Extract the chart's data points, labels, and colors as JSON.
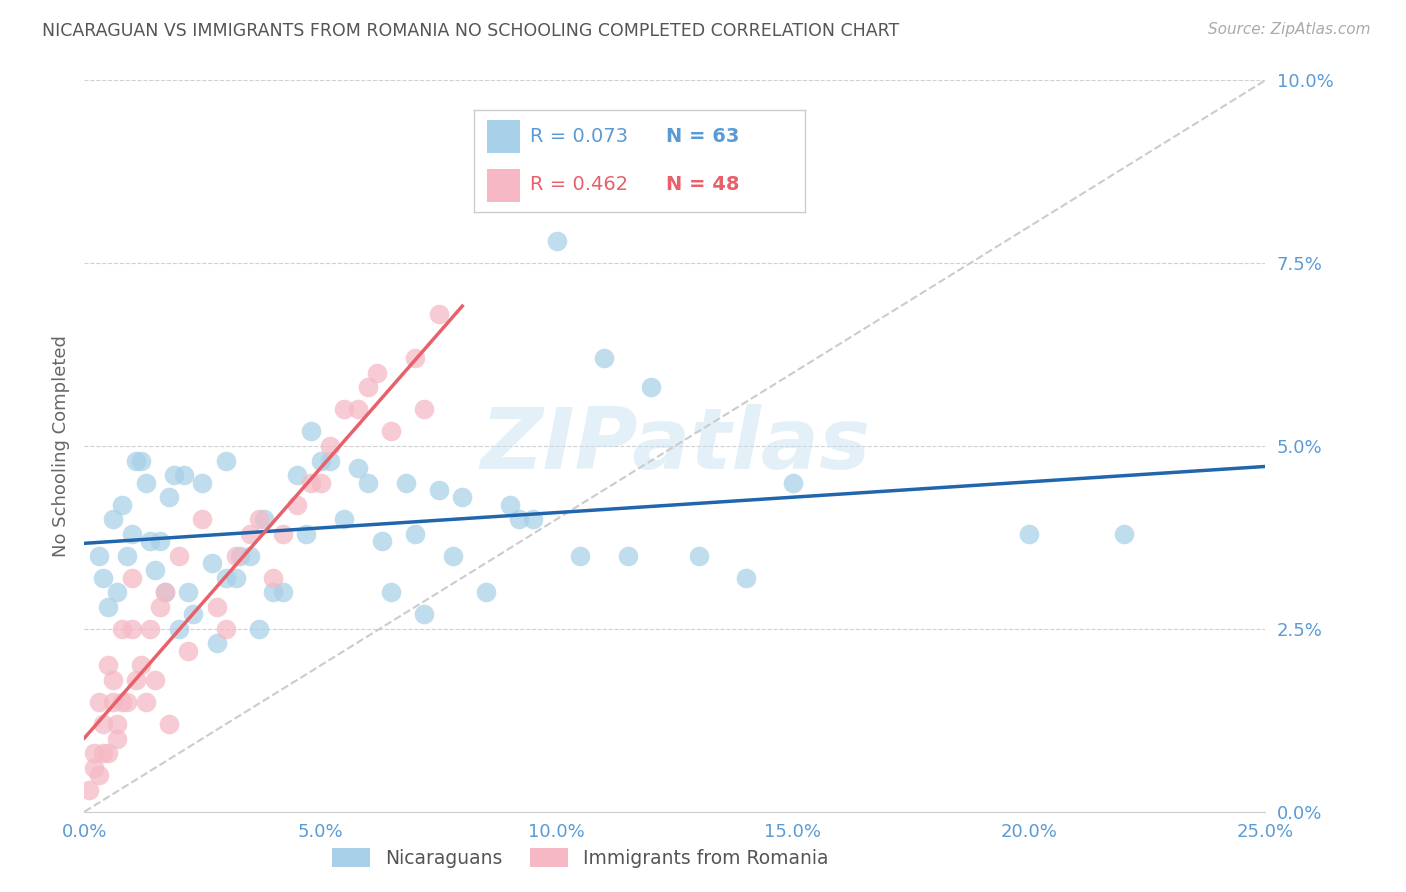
{
  "title": "NICARAGUAN VS IMMIGRANTS FROM ROMANIA NO SCHOOLING COMPLETED CORRELATION CHART",
  "source": "Source: ZipAtlas.com",
  "xtick_vals": [
    0.0,
    5.0,
    10.0,
    15.0,
    20.0,
    25.0
  ],
  "ytick_vals": [
    0.0,
    2.5,
    5.0,
    7.5,
    10.0
  ],
  "xlim": [
    0.0,
    25.0
  ],
  "ylim": [
    0.0,
    10.0
  ],
  "ylabel": "No Schooling Completed",
  "legend_label1": "Nicaraguans",
  "legend_label2": "Immigrants from Romania",
  "color1": "#a8d0e8",
  "color2": "#f5b8c4",
  "line_color1": "#2166ac",
  "line_color2": "#e8606a",
  "diagonal_color": "#cccccc",
  "tick_color": "#5b9bd5",
  "R1": 0.073,
  "N1": 63,
  "R2": 0.462,
  "N2": 48,
  "watermark": "ZIPatlas",
  "nicaraguan_x": [
    0.3,
    0.4,
    0.5,
    0.6,
    0.7,
    0.8,
    0.9,
    1.0,
    1.1,
    1.2,
    1.3,
    1.4,
    1.5,
    1.6,
    1.7,
    1.8,
    1.9,
    2.0,
    2.1,
    2.2,
    2.3,
    2.5,
    2.7,
    2.8,
    3.0,
    3.0,
    3.2,
    3.3,
    3.5,
    3.7,
    3.8,
    4.0,
    4.2,
    4.5,
    4.7,
    4.8,
    5.0,
    5.2,
    5.5,
    5.8,
    6.0,
    6.3,
    6.5,
    6.8,
    7.0,
    7.2,
    7.5,
    7.8,
    8.0,
    8.5,
    9.0,
    9.2,
    9.5,
    10.0,
    10.5,
    11.0,
    11.5,
    12.0,
    13.0,
    14.0,
    15.0,
    20.0,
    22.0
  ],
  "nicaraguan_y": [
    3.5,
    3.2,
    2.8,
    4.0,
    3.0,
    4.2,
    3.5,
    3.8,
    4.8,
    4.8,
    4.5,
    3.7,
    3.3,
    3.7,
    3.0,
    4.3,
    4.6,
    2.5,
    4.6,
    3.0,
    2.7,
    4.5,
    3.4,
    2.3,
    3.2,
    4.8,
    3.2,
    3.5,
    3.5,
    2.5,
    4.0,
    3.0,
    3.0,
    4.6,
    3.8,
    5.2,
    4.8,
    4.8,
    4.0,
    4.7,
    4.5,
    3.7,
    3.0,
    4.5,
    3.8,
    2.7,
    4.4,
    3.5,
    4.3,
    3.0,
    4.2,
    4.0,
    4.0,
    7.8,
    3.5,
    6.2,
    3.5,
    5.8,
    3.5,
    3.2,
    4.5,
    3.8,
    3.8
  ],
  "romania_x": [
    0.1,
    0.2,
    0.2,
    0.3,
    0.3,
    0.4,
    0.4,
    0.5,
    0.5,
    0.6,
    0.6,
    0.7,
    0.7,
    0.8,
    0.8,
    0.9,
    1.0,
    1.0,
    1.1,
    1.2,
    1.3,
    1.4,
    1.5,
    1.6,
    1.7,
    1.8,
    2.0,
    2.2,
    2.5,
    2.8,
    3.0,
    3.2,
    3.5,
    3.7,
    4.0,
    4.2,
    4.5,
    4.8,
    5.0,
    5.2,
    5.5,
    5.8,
    6.0,
    6.2,
    6.5,
    7.0,
    7.2,
    7.5
  ],
  "romania_y": [
    0.3,
    0.6,
    0.8,
    0.5,
    1.5,
    0.8,
    1.2,
    0.8,
    2.0,
    1.5,
    1.8,
    1.0,
    1.2,
    1.5,
    2.5,
    1.5,
    2.5,
    3.2,
    1.8,
    2.0,
    1.5,
    2.5,
    1.8,
    2.8,
    3.0,
    1.2,
    3.5,
    2.2,
    4.0,
    2.8,
    2.5,
    3.5,
    3.8,
    4.0,
    3.2,
    3.8,
    4.2,
    4.5,
    4.5,
    5.0,
    5.5,
    5.5,
    5.8,
    6.0,
    5.2,
    6.2,
    5.5,
    6.8
  ]
}
